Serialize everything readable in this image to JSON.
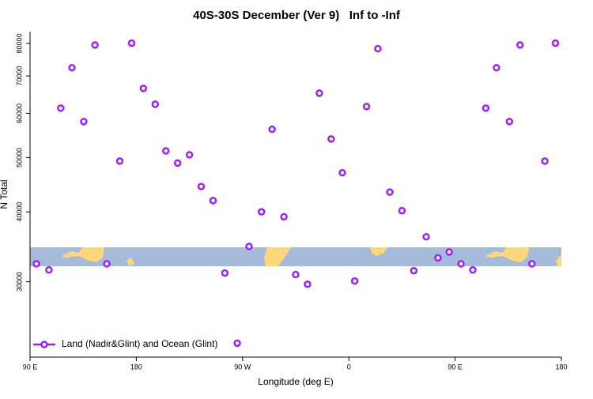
{
  "chart_data": {
    "type": "scatter",
    "title": "40S-30S December (Ver 9)   Inf to -Inf",
    "xlabel": "Longitude (deg E)",
    "ylabel": "N Total",
    "yscale": "log",
    "xlim": [
      90,
      540
    ],
    "ylim": [
      22000,
      84000
    ],
    "xticks": [
      {
        "value": 90,
        "label": "90 E"
      },
      180,
      {
        "value": 270,
        "label": "90 W"
      },
      {
        "value": 360,
        "label": "0"
      },
      {
        "value": 450,
        "label": "90 E"
      },
      {
        "value": 540,
        "label": "180"
      }
    ],
    "yticks": [
      30000,
      40000,
      50000,
      60000,
      70000,
      80000
    ],
    "legend": "lower left",
    "series": [
      {
        "name": "Land (Nadir&Glint) and Ocean (Glint)",
        "color": "#a020f0",
        "x": [
          95.4,
          106,
          116,
          125.5,
          135.5,
          145,
          155,
          166,
          176,
          186,
          196,
          205,
          215,
          225,
          235,
          245,
          255,
          265.5,
          275.5,
          286,
          295,
          305,
          315,
          325,
          335,
          345,
          354.5,
          365,
          375,
          384.6,
          394.7,
          405,
          415,
          425.5,
          435.5,
          445,
          455,
          465,
          476,
          485,
          496,
          505,
          515,
          526,
          535
        ],
        "values": [
          32300,
          31500,
          61300,
          72400,
          58000,
          79500,
          32300,
          49300,
          80100,
          66500,
          62300,
          51400,
          48900,
          50600,
          44400,
          41900,
          31100,
          23300,
          34700,
          40000,
          56200,
          39200,
          30900,
          29700,
          65200,
          54000,
          47000,
          30100,
          61700,
          78300,
          43400,
          40200,
          31400,
          36100,
          33100,
          33900,
          32300,
          31500,
          61300,
          72400,
          58000,
          79500,
          32300,
          49300,
          80100
        ]
      }
    ]
  }
}
